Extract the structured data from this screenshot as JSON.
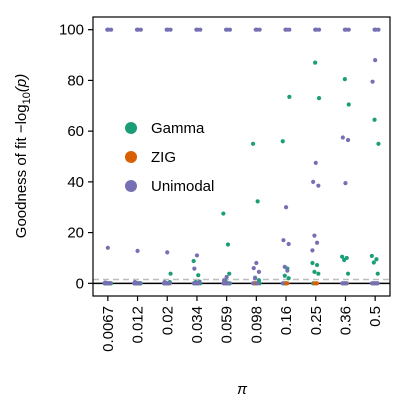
{
  "chart_data": {
    "type": "scatter",
    "title": "",
    "xlabel": "π",
    "ylabel_main": "Goodness of fit ",
    "ylabel_func": "−log",
    "ylabel_sub": "10",
    "ylabel_arg": "(p)",
    "categories": [
      "0.0067",
      "0.012",
      "0.02",
      "0.034",
      "0.059",
      "0.098",
      "0.16",
      "0.25",
      "0.36",
      "0.5"
    ],
    "ylim": [
      -5,
      105
    ],
    "yticks": [
      0,
      20,
      40,
      60,
      80,
      100
    ],
    "reference_line_dashed": 1.5,
    "reference_line_solid": 0,
    "legend_position": "center-left",
    "series": [
      {
        "name": "Gamma",
        "color": "#1b9e77",
        "values": [
          [
            0,
            0,
            0,
            0,
            0,
            0,
            0,
            0,
            0,
            0
          ],
          [
            0,
            0,
            0,
            0,
            0,
            0,
            0,
            0,
            0,
            0
          ],
          [
            0,
            0,
            0.5,
            0.7,
            3.8,
            1.2,
            2.0,
            3.8,
            3.8,
            3.8
          ],
          [
            0,
            0,
            0,
            0.5,
            1.0,
            2.2,
            3.0,
            4.5,
            9.2,
            8.2
          ],
          [
            0,
            0,
            0,
            3.2,
            15.3,
            32.3,
            5.8,
            7.2,
            10.0,
            9.5
          ],
          [
            0,
            0,
            0,
            8.8,
            27.5,
            55.0,
            56.0,
            8.0,
            10.5,
            10.8
          ],
          [
            0,
            0,
            3.8,
            0,
            0,
            0,
            73.5,
            73.0,
            70.5,
            55.0
          ],
          [
            0,
            0,
            0,
            0,
            0,
            0,
            0,
            87.0,
            80.5,
            64.5
          ]
        ]
      },
      {
        "name": "ZIG",
        "color": "#d95f02",
        "values": [
          [
            0,
            0,
            0,
            0,
            0,
            0,
            0,
            0,
            0,
            0
          ],
          [
            0,
            0,
            0,
            0,
            0,
            0,
            0,
            0,
            0,
            0
          ]
        ]
      },
      {
        "name": "Unimodal",
        "color": "#7570b3",
        "values": [
          [
            100,
            100,
            100,
            100,
            100,
            100,
            100,
            100,
            100,
            100
          ],
          [
            100,
            100,
            100,
            100,
            100,
            100,
            100,
            100,
            100,
            100
          ],
          [
            100,
            100,
            100,
            100,
            100,
            100,
            100,
            100,
            100,
            100
          ],
          [
            14.0,
            12.8,
            12.2,
            11.0,
            2.5,
            8.0,
            30.0,
            47.5,
            39.5,
            88.0
          ],
          [
            0.3,
            0.5,
            0.5,
            5.8,
            1.2,
            6.0,
            17.0,
            40.0,
            57.5,
            79.5
          ],
          [
            0,
            0,
            0,
            0.5,
            0,
            4.5,
            15.5,
            38.5,
            56.5,
            0
          ],
          [
            0,
            0,
            0,
            0,
            0,
            2.0,
            6.5,
            18.8,
            0,
            0
          ],
          [
            0,
            0,
            0,
            0,
            0,
            0,
            5.0,
            16.0,
            0,
            0
          ],
          [
            0,
            0,
            0,
            0,
            0,
            0,
            0,
            13.0,
            0,
            0
          ]
        ]
      }
    ]
  }
}
